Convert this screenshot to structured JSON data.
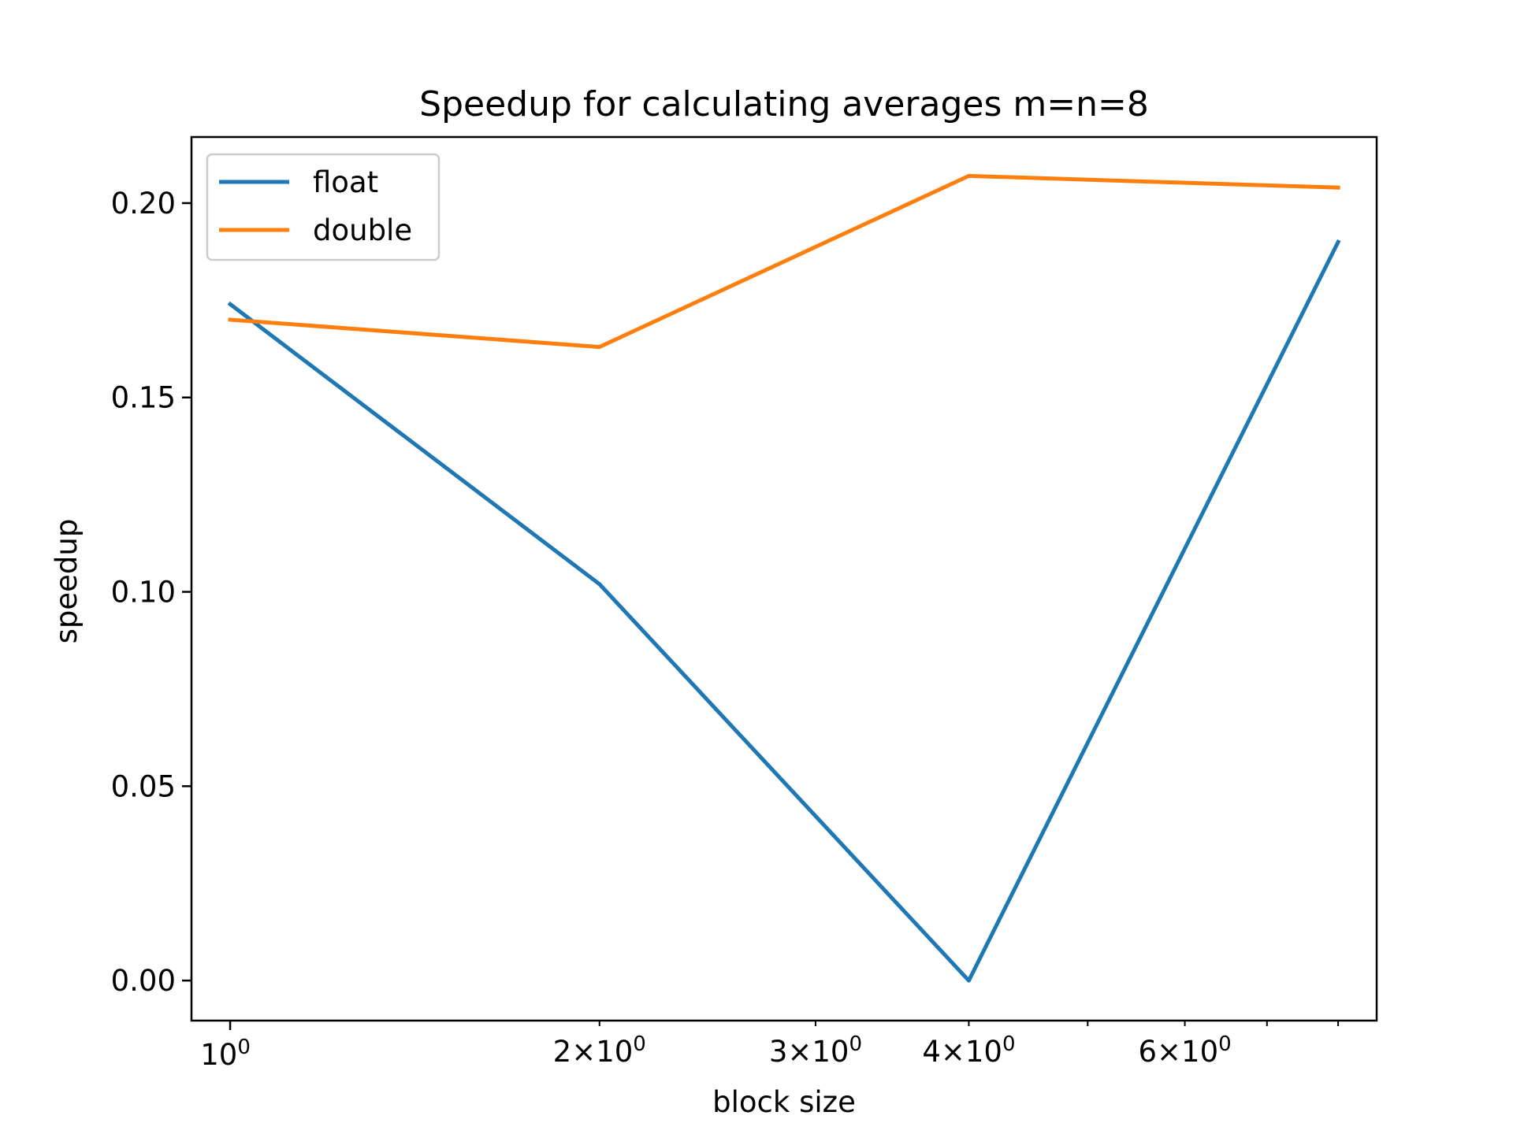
{
  "chart_data": {
    "type": "line",
    "title": "Speedup for calculating averages m=n=8",
    "xlabel": "block size",
    "ylabel": "speedup",
    "xscale": "log",
    "xlim": [
      0.93,
      8.6
    ],
    "ylim": [
      -0.0103,
      0.217
    ],
    "grid": false,
    "legend_position": "upper-left",
    "x": [
      1,
      2,
      4,
      8
    ],
    "series": [
      {
        "name": "float",
        "color": "#1f77b4",
        "values": [
          0.174,
          0.102,
          0.0,
          0.19
        ]
      },
      {
        "name": "double",
        "color": "#ff7f0e",
        "values": [
          0.17,
          0.163,
          0.207,
          0.204
        ]
      }
    ],
    "yticks": [
      {
        "value": 0.0,
        "label": "0.00"
      },
      {
        "value": 0.05,
        "label": "0.05"
      },
      {
        "value": 0.1,
        "label": "0.10"
      },
      {
        "value": 0.15,
        "label": "0.15"
      },
      {
        "value": 0.2,
        "label": "0.20"
      }
    ],
    "xticks_major": [
      {
        "value": 1,
        "base": "10",
        "exp": "0"
      }
    ],
    "xticks_minor": [
      {
        "value": 2,
        "base": "2×10",
        "exp": "0"
      },
      {
        "value": 3,
        "base": "3×10",
        "exp": "0"
      },
      {
        "value": 4,
        "base": "4×10",
        "exp": "0"
      },
      {
        "value": 5
      },
      {
        "value": 6,
        "base": "6×10",
        "exp": "0"
      },
      {
        "value": 7
      },
      {
        "value": 8
      }
    ]
  }
}
